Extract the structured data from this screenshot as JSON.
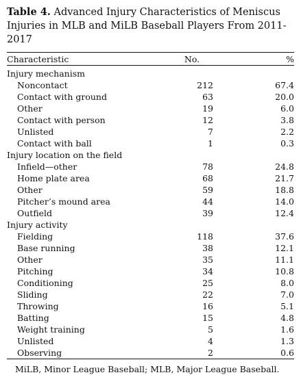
{
  "caption": {
    "label": "Table 4.",
    "text": " Advanced Injury Characteristics of Meniscus Injuries in MLB and MiLB Baseball Players From 2011-2017"
  },
  "columns": {
    "characteristic": "Characteristic",
    "no": "No.",
    "pct": "%"
  },
  "groups": [
    {
      "title": "Injury mechanism",
      "rows": [
        {
          "label": "Noncontact",
          "no": "212",
          "pct": "67.4"
        },
        {
          "label": "Contact with ground",
          "no": "63",
          "pct": "20.0"
        },
        {
          "label": "Other",
          "no": "19",
          "pct": "6.0"
        },
        {
          "label": "Contact with person",
          "no": "12",
          "pct": "3.8"
        },
        {
          "label": "Unlisted",
          "no": "7",
          "pct": "2.2"
        },
        {
          "label": "Contact with ball",
          "no": "1",
          "pct": "0.3"
        }
      ]
    },
    {
      "title": "Injury location on the field",
      "rows": [
        {
          "label": "Infield—other",
          "no": "78",
          "pct": "24.8"
        },
        {
          "label": "Home plate area",
          "no": "68",
          "pct": "21.7"
        },
        {
          "label": "Other",
          "no": "59",
          "pct": "18.8"
        },
        {
          "label": "Pitcher’s mound area",
          "no": "44",
          "pct": "14.0"
        },
        {
          "label": "Outfield",
          "no": "39",
          "pct": "12.4"
        }
      ]
    },
    {
      "title": "Injury activity",
      "rows": [
        {
          "label": "Fielding",
          "no": "118",
          "pct": "37.6"
        },
        {
          "label": "Base running",
          "no": "38",
          "pct": "12.1"
        },
        {
          "label": "Other",
          "no": "35",
          "pct": "11.1"
        },
        {
          "label": "Pitching",
          "no": "34",
          "pct": "10.8"
        },
        {
          "label": "Conditioning",
          "no": "25",
          "pct": "8.0"
        },
        {
          "label": "Sliding",
          "no": "22",
          "pct": "7.0"
        },
        {
          "label": "Throwing",
          "no": "16",
          "pct": "5.1"
        },
        {
          "label": "Batting",
          "no": "15",
          "pct": "4.8"
        },
        {
          "label": "Weight training",
          "no": "5",
          "pct": "1.6"
        },
        {
          "label": "Unlisted",
          "no": "4",
          "pct": "1.3"
        },
        {
          "label": "Observing",
          "no": "2",
          "pct": "0.6"
        }
      ]
    }
  ],
  "footnote": "MiLB, Minor League Baseball; MLB, Major League Baseball."
}
